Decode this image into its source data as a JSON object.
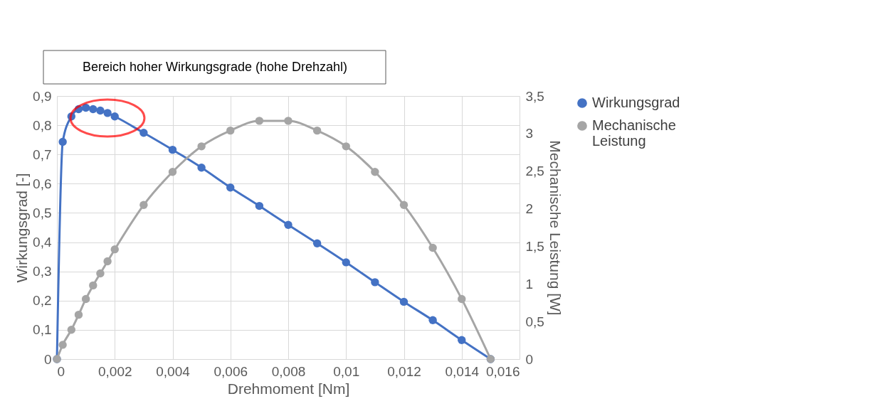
{
  "chart_data": {
    "type": "line",
    "xlabel": "Drehmoment [Nm]",
    "ylabel": "Wirkungsgrad [-]",
    "y2label": "Mechanische Leistung [W]",
    "annotations": [
      "Bereich hoher Wirkungsgrade (hohe Drehzahl)"
    ],
    "series": [
      {
        "name": "Wirkungsgrad",
        "color": "#4472c4",
        "x": [
          0,
          0.0002,
          0.0005,
          0.00075,
          0.001,
          0.00125,
          0.0015,
          0.00175,
          0.002,
          0.003,
          0.004,
          0.005,
          0.006,
          0.007,
          0.008,
          0.009,
          0.01,
          0.011,
          0.012,
          0.013,
          0.014,
          0.015
        ],
        "values": [
          0,
          0.743,
          0.83,
          0.855,
          0.86,
          0.855,
          0.85,
          0.842,
          0.83,
          0.774,
          0.716,
          0.655,
          0.587,
          0.524,
          0.459,
          0.396,
          0.331,
          0.263,
          0.196,
          0.133,
          0.065,
          0
        ]
      },
      {
        "name": "Mechanische Leistung",
        "color": "#a5a5a5",
        "axis": "y2",
        "x": [
          0,
          0.0002,
          0.0005,
          0.00075,
          0.001,
          0.00125,
          0.0015,
          0.00175,
          0.002,
          0.003,
          0.004,
          0.005,
          0.006,
          0.007,
          0.008,
          0.009,
          0.01,
          0.011,
          0.012,
          0.013,
          0.014,
          0.015
        ],
        "values": [
          0,
          0.19,
          0.39,
          0.59,
          0.8,
          0.98,
          1.14,
          1.3,
          1.46,
          2.05,
          2.49,
          2.83,
          3.04,
          3.17,
          3.17,
          3.04,
          2.83,
          2.49,
          2.05,
          1.48,
          0.8,
          0
        ]
      }
    ],
    "xlim": [
      0,
      0.016
    ],
    "xticks": [
      0,
      {
        "value": 0.002,
        "label": "0,002"
      },
      {
        "value": 0.004,
        "label": "0,004"
      },
      {
        "value": 0.006,
        "label": "0,006"
      },
      {
        "value": 0.008,
        "label": "0,008"
      },
      {
        "value": 0.01,
        "label": "0,01"
      },
      {
        "value": 0.012,
        "label": "0,012"
      },
      {
        "value": 0.014,
        "label": "0,014"
      },
      {
        "value": 0.016,
        "label": "0,016"
      }
    ],
    "ylim": [
      0,
      0.9
    ],
    "yticks": [
      0,
      {
        "value": 0.1,
        "label": "0,1"
      },
      {
        "value": 0.2,
        "label": "0,2"
      },
      {
        "value": 0.3,
        "label": "0,3"
      },
      {
        "value": 0.4,
        "label": "0,4"
      },
      {
        "value": 0.5,
        "label": "0,5"
      },
      {
        "value": 0.6,
        "label": "0,6"
      },
      {
        "value": 0.7,
        "label": "0,7"
      },
      {
        "value": 0.8,
        "label": "0,8"
      },
      {
        "value": 0.9,
        "label": "0,9"
      }
    ],
    "y2lim": [
      0,
      3.5
    ],
    "y2ticks": [
      0,
      {
        "value": 0.5,
        "label": "0,5"
      },
      1,
      {
        "value": 1.5,
        "label": "1,5"
      },
      2,
      {
        "value": 2.5,
        "label": "2,5"
      },
      3,
      {
        "value": 3.5,
        "label": "3,5"
      }
    ],
    "grid": true,
    "legend": "right",
    "marker": "circle",
    "line_style": "solid"
  }
}
